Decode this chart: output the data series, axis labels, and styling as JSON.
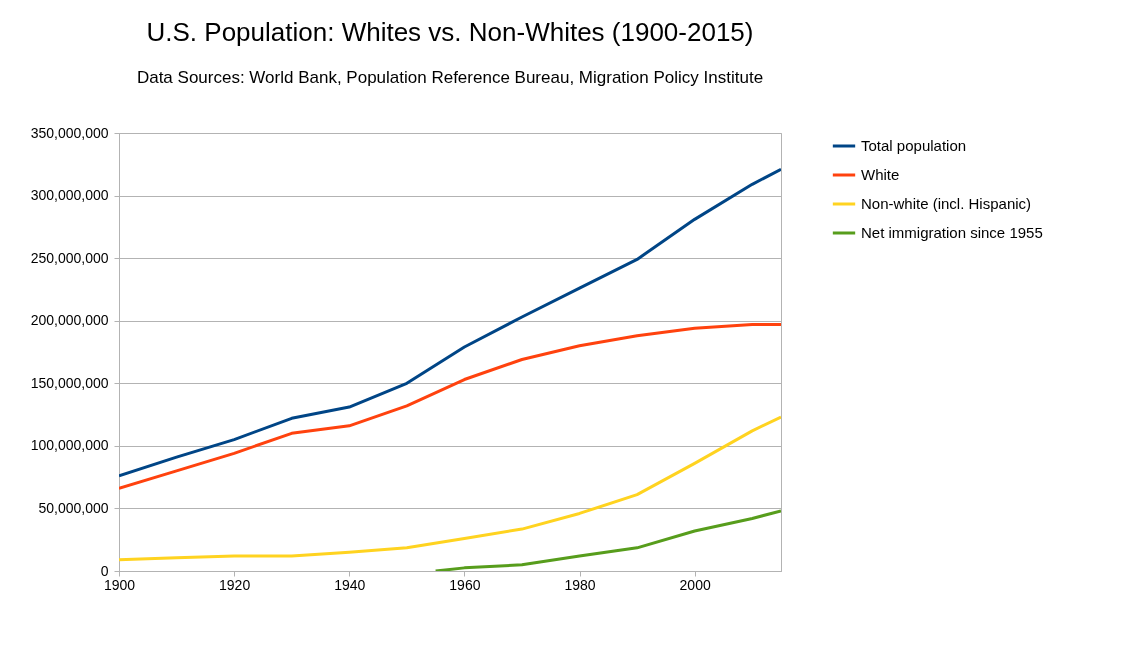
{
  "chart_data": {
    "type": "line",
    "title": "U.S. Population: Whites vs. Non-Whites (1900-2015)",
    "subtitle": "Data Sources: World Bank, Population Reference Bureau, Migration Policy Institute",
    "x": [
      1900,
      1910,
      1920,
      1930,
      1940,
      1950,
      1960,
      1970,
      1980,
      1990,
      2000,
      2010,
      2015
    ],
    "series": [
      {
        "name": "Total population",
        "color": "#004586",
        "values": [
          76000000,
          91000000,
          105000000,
          122000000,
          131000000,
          150000000,
          179000000,
          203000000,
          226000000,
          249000000,
          281000000,
          309000000,
          321000000
        ]
      },
      {
        "name": "White",
        "color": "#ff420e",
        "values": [
          66000000,
          80000000,
          94000000,
          110000000,
          116000000,
          132000000,
          153000000,
          169000000,
          180000000,
          188000000,
          194000000,
          197000000,
          197000000
        ]
      },
      {
        "name": "Non-white (incl. Hispanic)",
        "color": "#ffd320",
        "values": [
          9000000,
          10500000,
          12000000,
          12000000,
          15000000,
          18500000,
          26000000,
          33500000,
          46000000,
          61000000,
          86000000,
          112000000,
          123000000
        ]
      },
      {
        "name": "Net immigration since 1955",
        "color": "#579d1c",
        "x": [
          1955,
          1960,
          1970,
          1980,
          1990,
          2000,
          2010,
          2015
        ],
        "values": [
          0,
          2500000,
          5000000,
          12000000,
          18500000,
          32000000,
          42000000,
          48000000
        ]
      }
    ],
    "xlim": [
      1900,
      2015
    ],
    "xticks": [
      1900,
      1920,
      1940,
      1960,
      1980,
      2000
    ],
    "ylim": [
      0,
      350000000
    ],
    "yticks": [
      0,
      {
        "value": 50000000,
        "label": "50,000,000"
      },
      {
        "value": 100000000,
        "label": "100,000,000"
      },
      {
        "value": 150000000,
        "label": "150,000,000"
      },
      {
        "value": 200000000,
        "label": "200,000,000"
      },
      {
        "value": 250000000,
        "label": "250,000,000"
      },
      {
        "value": 300000000,
        "label": "300,000,000"
      },
      {
        "value": 350000000,
        "label": "350,000,000"
      }
    ],
    "grid": "y",
    "legend": "right",
    "marker": "none",
    "line_style": "solid"
  }
}
